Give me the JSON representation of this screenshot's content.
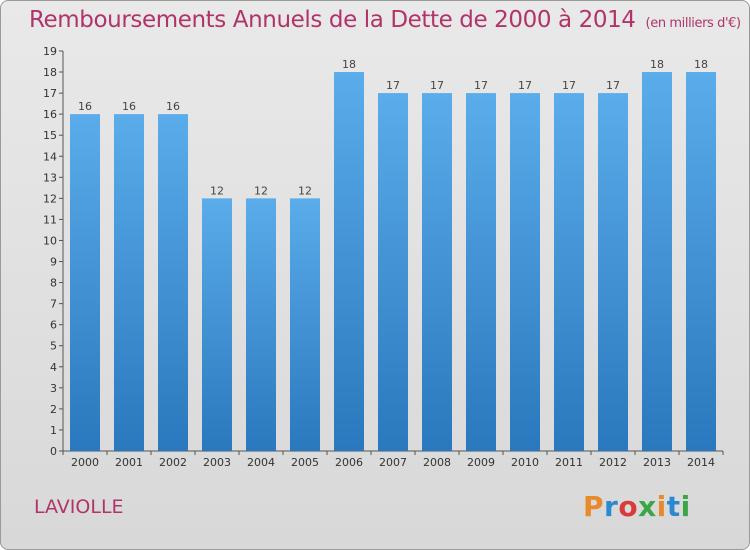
{
  "header": {
    "title": "Remboursements Annuels de la Dette de 2000 à 2014",
    "unit": "(en milliers d'€)"
  },
  "footer": {
    "commune": "LAVIOLLE",
    "logo": "Proxiti"
  },
  "colors": {
    "title": "#b0346a",
    "bar_top": "#5aacea",
    "bar_bottom": "#2a78bd",
    "background": "#e2e2e2"
  },
  "chart_data": {
    "type": "bar",
    "title": "Remboursements Annuels de la Dette de 2000 à 2014",
    "subtitle": "(en milliers d'€)",
    "categories": [
      "2000",
      "2001",
      "2002",
      "2003",
      "2004",
      "2005",
      "2006",
      "2007",
      "2008",
      "2009",
      "2010",
      "2011",
      "2012",
      "2013",
      "2014"
    ],
    "values": [
      16,
      16,
      16,
      12,
      12,
      12,
      18,
      17,
      17,
      17,
      17,
      17,
      17,
      18,
      18
    ],
    "ylim": [
      0,
      19
    ],
    "yticks": [
      0,
      1,
      2,
      3,
      4,
      5,
      6,
      7,
      8,
      9,
      10,
      11,
      12,
      13,
      14,
      15,
      16,
      17,
      18,
      19
    ],
    "grid": false,
    "legend": "none"
  }
}
